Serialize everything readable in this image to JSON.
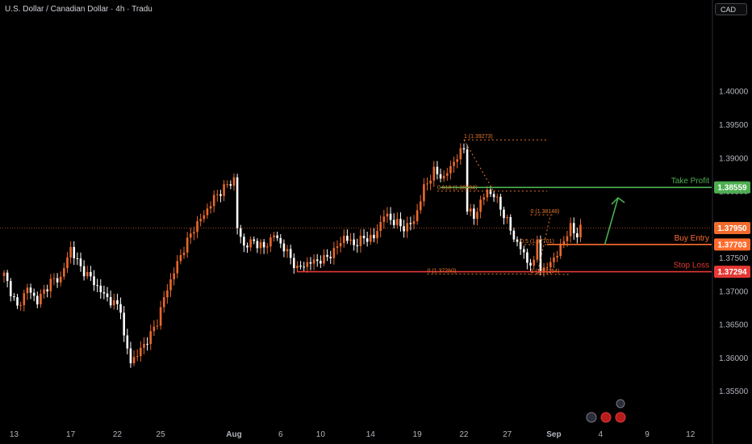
{
  "header": {
    "symbol_title": "U.S. Dollar / Canadian Dollar · 4h · Tradu",
    "currency_badge": "CAD"
  },
  "colors": {
    "background": "#000000",
    "axis_text": "#b2b5be",
    "candle_up": "#e8692c",
    "candle_down": "#ffffff",
    "fib": "#e8792c",
    "take_profit": "#4caf50",
    "buy_entry": "#ff6d2e",
    "stop_loss": "#e53935",
    "current_price": "#f26b2c"
  },
  "chart_data": {
    "type": "candlestick",
    "title": "U.S. Dollar / Canadian Dollar · 4h · Tradu",
    "ylim": [
      1.35,
      1.4125
    ],
    "y_ticks": [
      1.355,
      1.36,
      1.365,
      1.37,
      1.375,
      1.38,
      1.385,
      1.39,
      1.395,
      1.4
    ],
    "y_tick_labels": [
      "1.35500",
      "1.36000",
      "1.36500",
      "1.37000",
      "1.37500",
      "1.38000",
      "1.38500",
      "1.39000",
      "1.39500",
      "1.40000"
    ],
    "x_ticks": [
      {
        "label": "13",
        "bar": 3
      },
      {
        "label": "17",
        "bar": 20
      },
      {
        "label": "22",
        "bar": 34
      },
      {
        "label": "25",
        "bar": 47
      },
      {
        "label": "Aug",
        "bar": 69
      },
      {
        "label": "6",
        "bar": 83
      },
      {
        "label": "10",
        "bar": 95
      },
      {
        "label": "14",
        "bar": 110
      },
      {
        "label": "19",
        "bar": 124
      },
      {
        "label": "22",
        "bar": 138
      },
      {
        "label": "27",
        "bar": 151
      },
      {
        "label": "Sep",
        "bar": 165
      },
      {
        "label": "4",
        "bar": 179
      },
      {
        "label": "9",
        "bar": 193
      },
      {
        "label": "12",
        "bar": 206
      }
    ],
    "bar_count": 216,
    "close_anchors": [
      [
        0,
        1.3725
      ],
      [
        4,
        1.3675
      ],
      [
        7,
        1.3705
      ],
      [
        10,
        1.3685
      ],
      [
        14,
        1.3715
      ],
      [
        17,
        1.372
      ],
      [
        20,
        1.3765
      ],
      [
        23,
        1.3735
      ],
      [
        26,
        1.372
      ],
      [
        29,
        1.37
      ],
      [
        32,
        1.3685
      ],
      [
        35,
        1.3675
      ],
      [
        36,
        1.363
      ],
      [
        38,
        1.3595
      ],
      [
        40,
        1.3605
      ],
      [
        42,
        1.362
      ],
      [
        44,
        1.3635
      ],
      [
        46,
        1.3655
      ],
      [
        48,
        1.369
      ],
      [
        51,
        1.373
      ],
      [
        54,
        1.3765
      ],
      [
        57,
        1.3795
      ],
      [
        60,
        1.3815
      ],
      [
        63,
        1.384
      ],
      [
        66,
        1.3855
      ],
      [
        69,
        1.3868
      ],
      [
        70,
        1.3795
      ],
      [
        72,
        1.3768
      ],
      [
        75,
        1.3775
      ],
      [
        78,
        1.3765
      ],
      [
        81,
        1.3785
      ],
      [
        84,
        1.3765
      ],
      [
        86,
        1.375
      ],
      [
        88,
        1.3733
      ],
      [
        90,
        1.374
      ],
      [
        93,
        1.3745
      ],
      [
        96,
        1.3748
      ],
      [
        99,
        1.376
      ],
      [
        102,
        1.3782
      ],
      [
        105,
        1.377
      ],
      [
        108,
        1.378
      ],
      [
        111,
        1.378
      ],
      [
        114,
        1.3815
      ],
      [
        117,
        1.3805
      ],
      [
        120,
        1.3795
      ],
      [
        123,
        1.3805
      ],
      [
        126,
        1.3855
      ],
      [
        129,
        1.388
      ],
      [
        132,
        1.387
      ],
      [
        135,
        1.3895
      ],
      [
        138,
        1.3915
      ],
      [
        139,
        1.3825
      ],
      [
        141,
        1.381
      ],
      [
        143,
        1.3835
      ],
      [
        145,
        1.385
      ],
      [
        147,
        1.3845
      ],
      [
        149,
        1.3825
      ],
      [
        151,
        1.3805
      ],
      [
        153,
        1.378
      ],
      [
        155,
        1.3765
      ],
      [
        157,
        1.3745
      ],
      [
        159,
        1.374
      ],
      [
        160,
        1.378
      ],
      [
        161,
        1.3735
      ],
      [
        162,
        1.373
      ],
      [
        164,
        1.3745
      ],
      [
        166,
        1.3755
      ],
      [
        168,
        1.3778
      ],
      [
        170,
        1.3795
      ],
      [
        172,
        1.3785
      ],
      [
        173,
        1.3795
      ]
    ],
    "current_price": 1.3795,
    "current_price_label": "1.37950",
    "levels": [
      {
        "name": "Take Profit",
        "value": 1.38559,
        "value_label": "1.38559",
        "color": "#4caf50"
      },
      {
        "name": "Buy Entry",
        "value": 1.37703,
        "value_label": "1.37703",
        "color": "#ff6d2e"
      },
      {
        "name": "Stop Loss",
        "value": 1.37294,
        "value_label": "1.37294",
        "color": "#e53935"
      }
    ],
    "fib_labels": [
      {
        "text": "1 (1.39273)",
        "value": 1.39273,
        "bar": 138
      },
      {
        "text": "0.618 (1.38504)",
        "value": 1.38504,
        "bar": 130
      },
      {
        "text": "0 (1.38148)",
        "value": 1.38148,
        "bar": 158
      },
      {
        "text": "0.5 (1.37701)",
        "value": 1.37701,
        "bar": 155
      },
      {
        "text": "0 (1.37260)",
        "value": 1.3726,
        "bar": 127
      },
      {
        "text": "1 (1.37254)",
        "value": 1.37254,
        "bar": 158
      }
    ],
    "projection_arrow": {
      "from": [
        173,
        1.3775
      ],
      "to": [
        177,
        1.385
      ]
    }
  }
}
